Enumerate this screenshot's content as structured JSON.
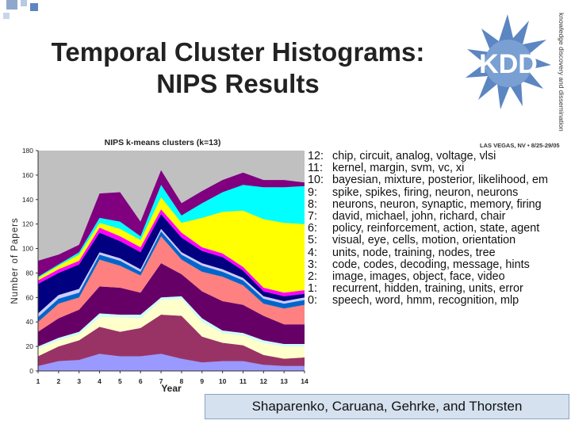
{
  "slide": {
    "title_line1": "Temporal Cluster Histograms:",
    "title_line2": "NIPS Results",
    "authors": "Shaparenko, Caruana, Gehrke, and Thorsten"
  },
  "logo": {
    "text": "KDD",
    "side_text": "knowledge discovery and dissemination",
    "caption": "LAS VEGAS, NV • 8/25-29/05"
  },
  "colors": {
    "accent_blue": "#5c86c2",
    "author_box_bg": "#d5e1ef"
  },
  "legend": [
    {
      "num": "12:",
      "words": "chip, circuit, analog, voltage, vlsi"
    },
    {
      "num": "11:",
      "words": "kernel, margin, svm, vc, xi"
    },
    {
      "num": "10:",
      "words": "bayesian, mixture, posterior, likelihood, em"
    },
    {
      "num": "9:",
      "words": "spike, spikes, firing, neuron, neurons"
    },
    {
      "num": "8:",
      "words": "neurons, neuron, synaptic, memory, firing"
    },
    {
      "num": "7:",
      "words": "david, michael, john, richard, chair"
    },
    {
      "num": "6:",
      "words": "policy, reinforcement, action, state, agent"
    },
    {
      "num": "5:",
      "words": "visual, eye, cells, motion, orientation"
    },
    {
      "num": "4:",
      "words": "units, node, training, nodes, tree"
    },
    {
      "num": "3:",
      "words": "code, codes, decoding, message, hints"
    },
    {
      "num": "2:",
      "words": "image, images, object, face, video"
    },
    {
      "num": "1:",
      "words": "recurrent, hidden, training, units, error"
    },
    {
      "num": "0:",
      "words": "speech, word, hmm, recognition, mlp"
    }
  ],
  "chart_data": {
    "type": "area",
    "title": "NIPS k-means clusters (k=13)",
    "xlabel": "Year",
    "ylabel": "Number of Papers",
    "x": [
      1,
      2,
      3,
      4,
      5,
      6,
      7,
      8,
      9,
      10,
      11,
      12,
      13,
      14
    ],
    "ylim": [
      0,
      180
    ],
    "yticks": [
      0,
      20,
      40,
      60,
      80,
      100,
      120,
      140,
      160,
      180
    ],
    "plot_bg": "#c0c0c0",
    "series": [
      {
        "name": "0",
        "color": "#9999ff",
        "values": [
          4,
          8,
          9,
          14,
          12,
          12,
          14,
          10,
          7,
          8,
          8,
          5,
          4,
          4
        ]
      },
      {
        "name": "1",
        "color": "#993366",
        "values": [
          8,
          12,
          16,
          22,
          20,
          23,
          32,
          35,
          21,
          15,
          13,
          8,
          6,
          7
        ]
      },
      {
        "name": "2",
        "color": "#ffffcc",
        "values": [
          6,
          5,
          5,
          8,
          12,
          8,
          12,
          14,
          12,
          8,
          8,
          10,
          10,
          9
        ]
      },
      {
        "name": "3",
        "color": "#ccffff",
        "values": [
          2,
          2,
          2,
          3,
          2,
          3,
          2,
          2,
          3,
          2,
          2,
          2,
          2,
          2
        ]
      },
      {
        "name": "4",
        "color": "#660066",
        "values": [
          12,
          16,
          18,
          22,
          22,
          18,
          28,
          18,
          22,
          24,
          23,
          20,
          16,
          16
        ]
      },
      {
        "name": "5",
        "color": "#ff8080",
        "values": [
          8,
          12,
          10,
          22,
          18,
          14,
          22,
          12,
          16,
          20,
          16,
          10,
          13,
          16
        ]
      },
      {
        "name": "6",
        "color": "#0066cc",
        "values": [
          4,
          4,
          4,
          4,
          4,
          3,
          4,
          4,
          5,
          4,
          4,
          4,
          4,
          4
        ]
      },
      {
        "name": "7",
        "color": "#ccccff",
        "values": [
          3,
          3,
          3,
          2,
          2,
          2,
          2,
          2,
          2,
          2,
          2,
          2,
          2,
          2
        ]
      },
      {
        "name": "8",
        "color": "#000080",
        "values": [
          24,
          18,
          20,
          16,
          14,
          14,
          12,
          12,
          10,
          10,
          6,
          4,
          4,
          3
        ]
      },
      {
        "name": "9",
        "color": "#ff00ff",
        "values": [
          3,
          3,
          3,
          4,
          4,
          4,
          4,
          4,
          3,
          3,
          3,
          3,
          3,
          3
        ]
      },
      {
        "name": "10",
        "color": "#ffff00",
        "values": [
          2,
          3,
          5,
          4,
          6,
          6,
          10,
          8,
          24,
          34,
          46,
          56,
          57,
          54
        ]
      },
      {
        "name": "11",
        "color": "#00ffff",
        "values": [
          1,
          1,
          2,
          4,
          6,
          3,
          10,
          6,
          12,
          16,
          21,
          26,
          29,
          31
        ]
      },
      {
        "name": "12",
        "color": "#800080",
        "values": [
          13,
          8,
          6,
          20,
          24,
          12,
          12,
          10,
          10,
          10,
          10,
          6,
          6,
          3
        ]
      }
    ]
  }
}
